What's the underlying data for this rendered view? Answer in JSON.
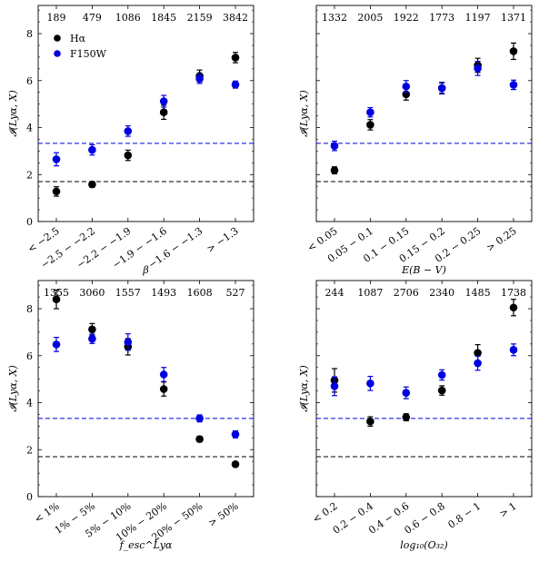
{
  "colors": {
    "halpha": "#000000",
    "f150w": "#0000e0"
  },
  "legend": {
    "halpha": "Hα",
    "f150w": "F150W"
  },
  "reference_lines": {
    "halpha": 1.7,
    "f150w": 3.33
  },
  "chart_data": [
    {
      "type": "scatter",
      "ylabel": "𝓘(Lyα, X)",
      "xlabel": "β",
      "ylim": [
        0,
        9.2
      ],
      "yticks": [
        0,
        2,
        4,
        6,
        8
      ],
      "categories": [
        "< −2.5",
        "−2.5 − −2.2",
        "−2.2 − −1.9",
        "−1.9 − −1.6",
        "−1.6 − −1.3",
        "> −1.3"
      ],
      "counts": [
        "189",
        "479",
        "1086",
        "1845",
        "2159",
        "3842"
      ],
      "legend": "upper-left",
      "series": [
        {
          "name": "Hα",
          "values": [
            1.28,
            1.58,
            2.82,
            4.65,
            6.2,
            6.98
          ],
          "errors": [
            0.2,
            0.12,
            0.22,
            0.3,
            0.25,
            0.22
          ]
        },
        {
          "name": "F150W",
          "values": [
            2.65,
            3.05,
            3.85,
            5.12,
            6.08,
            5.83
          ],
          "errors": [
            0.28,
            0.22,
            0.22,
            0.25,
            0.2,
            0.15
          ]
        }
      ]
    },
    {
      "type": "scatter",
      "ylabel": "𝓘(Lyα, X)",
      "xlabel": "E(B − V)",
      "ylim": [
        0,
        9.2
      ],
      "yticks": [
        0,
        2,
        4,
        6,
        8
      ],
      "categories": [
        "< 0.05",
        "0.05 − 0.1",
        "0.1 − 0.15",
        "0.15 − 0.2",
        "0.2 − 0.25",
        "> 0.25"
      ],
      "counts": [
        "1332",
        "2005",
        "1922",
        "1773",
        "1197",
        "1371"
      ],
      "series": [
        {
          "name": "Hα",
          "values": [
            2.18,
            4.12,
            5.42,
            5.68,
            6.65,
            7.25
          ],
          "errors": [
            0.15,
            0.22,
            0.25,
            0.22,
            0.3,
            0.35
          ]
        },
        {
          "name": "F150W",
          "values": [
            3.22,
            4.65,
            5.75,
            5.68,
            6.52,
            5.82
          ],
          "errors": [
            0.2,
            0.2,
            0.25,
            0.25,
            0.3,
            0.2
          ]
        }
      ]
    },
    {
      "type": "scatter",
      "ylabel": "𝓘(Lyα, X)",
      "xlabel": "f_esc^Lyα",
      "ylim": [
        0,
        9.2
      ],
      "yticks": [
        0,
        2,
        4,
        6,
        8
      ],
      "categories": [
        "< 1%",
        "1% − 5%",
        "5% − 10%",
        "10% − 20%",
        "20% − 50%",
        "> 50%"
      ],
      "counts": [
        "1355",
        "3060",
        "1557",
        "1493",
        "1608",
        "527"
      ],
      "series": [
        {
          "name": "Hα",
          "values": [
            8.4,
            7.12,
            6.38,
            4.58,
            2.45,
            1.38
          ],
          "errors": [
            0.4,
            0.25,
            0.35,
            0.3,
            0.12,
            0.08
          ]
        },
        {
          "name": "F150W",
          "values": [
            6.48,
            6.72,
            6.58,
            5.2,
            3.33,
            2.65
          ],
          "errors": [
            0.3,
            0.2,
            0.35,
            0.3,
            0.15,
            0.15
          ]
        }
      ]
    },
    {
      "type": "scatter",
      "ylabel": "𝓘(Lyα, X)",
      "xlabel": "log₁₀(O₃₂)",
      "ylim": [
        0,
        9.2
      ],
      "yticks": [
        0,
        2,
        4,
        6,
        8
      ],
      "categories": [
        "< 0.2",
        "0.2 − 0.4",
        "0.4 − 0.6",
        "0.6 − 0.8",
        "0.8 − 1",
        "> 1"
      ],
      "counts": [
        "244",
        "1087",
        "2706",
        "2340",
        "1485",
        "1738"
      ],
      "series": [
        {
          "name": "Hα",
          "values": [
            4.95,
            3.2,
            3.38,
            4.52,
            6.12,
            8.05
          ],
          "errors": [
            0.5,
            0.2,
            0.15,
            0.2,
            0.35,
            0.35
          ]
        },
        {
          "name": "F150W",
          "values": [
            4.7,
            4.82,
            4.42,
            5.18,
            5.68,
            6.25
          ],
          "errors": [
            0.4,
            0.3,
            0.25,
            0.22,
            0.3,
            0.25
          ]
        }
      ]
    }
  ]
}
